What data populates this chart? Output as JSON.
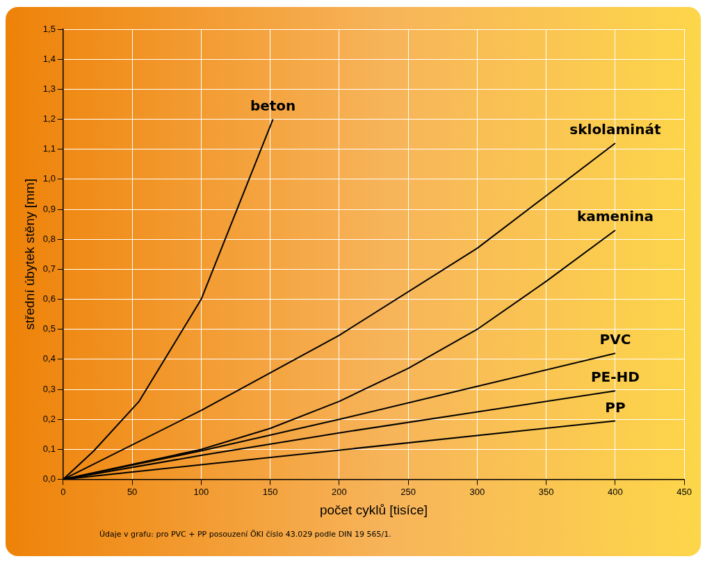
{
  "chart_data": {
    "type": "line",
    "xlabel": "počet cyklů [tisíce]",
    "ylabel": "střední úbytek stěny [mm]",
    "xlim": [
      0,
      450
    ],
    "xticks": [
      0,
      50,
      100,
      150,
      200,
      250,
      300,
      350,
      400,
      450
    ],
    "ylim": [
      0,
      1.5
    ],
    "yticks": [
      {
        "value": 0,
        "label": "0,0"
      },
      {
        "value": 0.1,
        "label": "0,1"
      },
      {
        "value": 0.2,
        "label": "0,2"
      },
      {
        "value": 0.3,
        "label": "0,3"
      },
      {
        "value": 0.4,
        "label": "0,4"
      },
      {
        "value": 0.5,
        "label": "0,5"
      },
      {
        "value": 0.6,
        "label": "0,6"
      },
      {
        "value": 0.7,
        "label": "0,7"
      },
      {
        "value": 0.8,
        "label": "0,8"
      },
      {
        "value": 0.9,
        "label": "0,9"
      },
      {
        "value": 1.0,
        "label": "1,0"
      },
      {
        "value": 1.1,
        "label": "1,1"
      },
      {
        "value": 1.2,
        "label": "1,2"
      },
      {
        "value": 1.3,
        "label": "1,3"
      },
      {
        "value": 1.4,
        "label": "1,4"
      },
      {
        "value": 1.5,
        "label": "1,5"
      }
    ],
    "grid": true,
    "legend": false,
    "marker": "none",
    "line_style": "solid",
    "series": [
      {
        "name": "beton",
        "color": "#000000",
        "x": [
          0,
          22,
          55,
          100,
          152
        ],
        "values": [
          0,
          0.094,
          0.26,
          0.6,
          1.2
        ]
      },
      {
        "name": "sklolaminát",
        "color": "#000000",
        "x": [
          0,
          100,
          200,
          300,
          400
        ],
        "values": [
          0,
          0.23,
          0.48,
          0.77,
          1.12
        ]
      },
      {
        "name": "kamenina",
        "color": "#000000",
        "x": [
          0,
          100,
          150,
          200,
          250,
          300,
          350,
          400
        ],
        "values": [
          0,
          0.1,
          0.17,
          0.26,
          0.37,
          0.5,
          0.66,
          0.83
        ]
      },
      {
        "name": "PVC",
        "color": "#000000",
        "x": [
          0,
          100,
          200,
          300,
          400
        ],
        "values": [
          0,
          0.095,
          0.2,
          0.31,
          0.42
        ]
      },
      {
        "name": "PE-HD",
        "color": "#000000",
        "x": [
          0,
          100,
          200,
          300,
          400
        ],
        "values": [
          0,
          0.08,
          0.155,
          0.225,
          0.295
        ]
      },
      {
        "name": "PP",
        "color": "#000000",
        "x": [
          0,
          400
        ],
        "values": [
          0,
          0.195
        ]
      }
    ],
    "annotations": [
      "Údaje v grafu: pro PVC + PP posouzení ÖKI číslo 43.029 podle DIN 19 565/1."
    ]
  }
}
